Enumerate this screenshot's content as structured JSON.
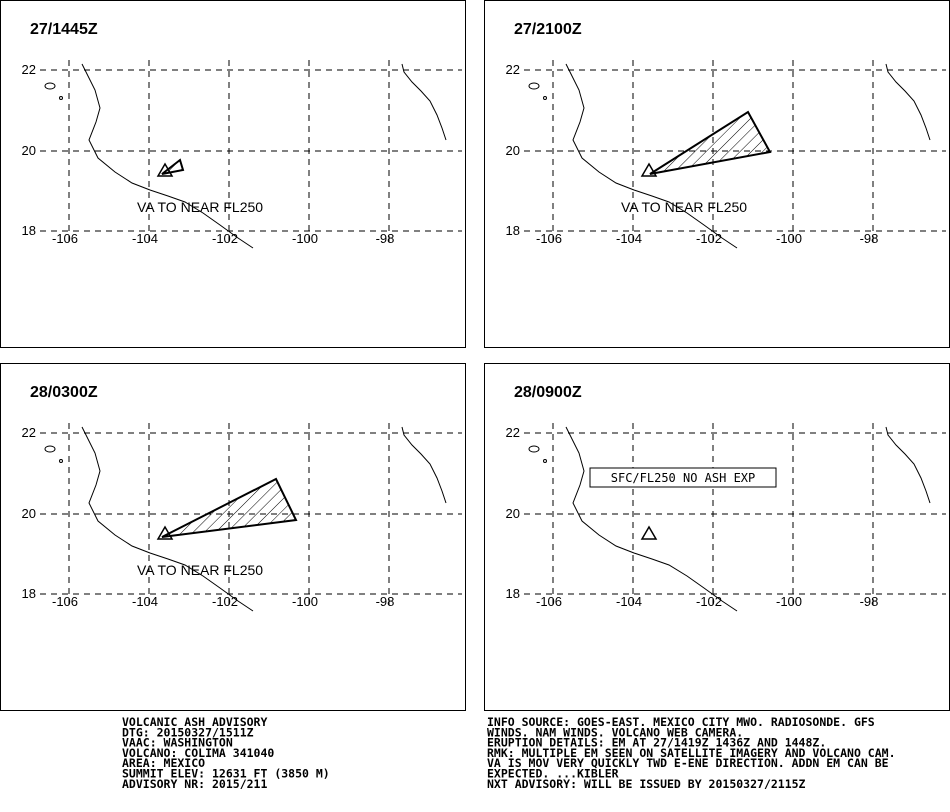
{
  "panels": [
    {
      "time": "27/1445Z",
      "annotation": "VA TO NEAR FL250"
    },
    {
      "time": "27/2100Z",
      "annotation": "VA TO NEAR FL250"
    },
    {
      "time": "28/0300Z",
      "annotation": "VA TO NEAR FL250"
    },
    {
      "time": "28/0900Z",
      "annotation": "SFC/FL250 NO ASH EXP"
    }
  ],
  "lat_labels": [
    "22",
    "20",
    "18"
  ],
  "lon_labels": [
    "-106",
    "-104",
    "-102",
    "-100",
    "-98"
  ],
  "advisory_left": [
    "VOLCANIC ASH ADVISORY",
    "DTG: 20150327/1511Z",
    "VAAC: WASHINGTON",
    "VOLCANO: COLIMA 341040",
    "AREA: MEXICO",
    "SUMMIT ELEV: 12631 FT (3850 M)",
    "ADVISORY NR: 2015/211"
  ],
  "advisory_right": [
    "INFO SOURCE: GOES-EAST. MEXICO CITY MWO. RADIOSONDE. GFS",
    "WINDS. NAM WINDS. VOLCANO WEB CAMERA.",
    "ERUPTION DETAILS: EM AT 27/1419Z 1436Z AND 1448Z.",
    "RMK: MULTIPLE EM SEEN ON SATELLITE IMAGERY AND VOLCANO CAM.",
    "VA IS MOV VERY QUICKLY TWD E-ENE DIRECTION. ADDN EM CAN BE",
    "EXPECTED. ...KIBLER",
    "NXT ADVISORY: WILL BE ISSUED BY 20150327/2115Z"
  ]
}
